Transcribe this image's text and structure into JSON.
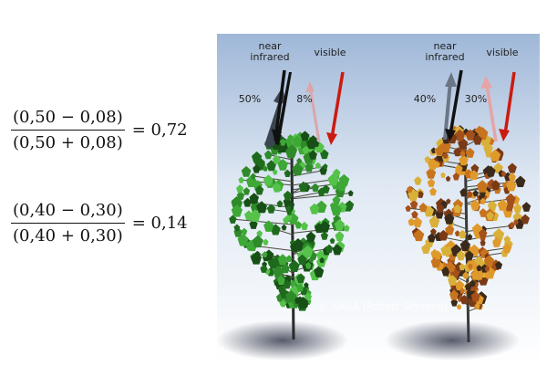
{
  "formulas": [
    {
      "numerator": "(0,50 − 0,08)",
      "denominator": "(0,50 + 0,08)",
      "result": "= 0,72"
    },
    {
      "numerator": "(0,40 − 0,30)",
      "denominator": "(0,40 + 0,30)",
      "result": "= 0,14"
    }
  ],
  "illustration": {
    "healthy": {
      "nir_label_line1": "near",
      "nir_label_line2": "infrared",
      "nir_percent": "50%",
      "visible_label": "visible",
      "visible_percent": "8%"
    },
    "stressed": {
      "nir_label_line1": "near",
      "nir_label_line2": "infrared",
      "nir_percent": "40%",
      "visible_label": "visible",
      "visible_percent": "30%"
    },
    "credit": "© NASA (Robert Simmon)"
  },
  "colors": {
    "sky_top": "#9fb7d8",
    "sky_bottom": "#ffffff",
    "healthy_leaf": "#2f8a2a",
    "stressed_leaf": "#c8741e",
    "visible_arrow": "#cc1a10",
    "nir_arrow": "#111111"
  }
}
